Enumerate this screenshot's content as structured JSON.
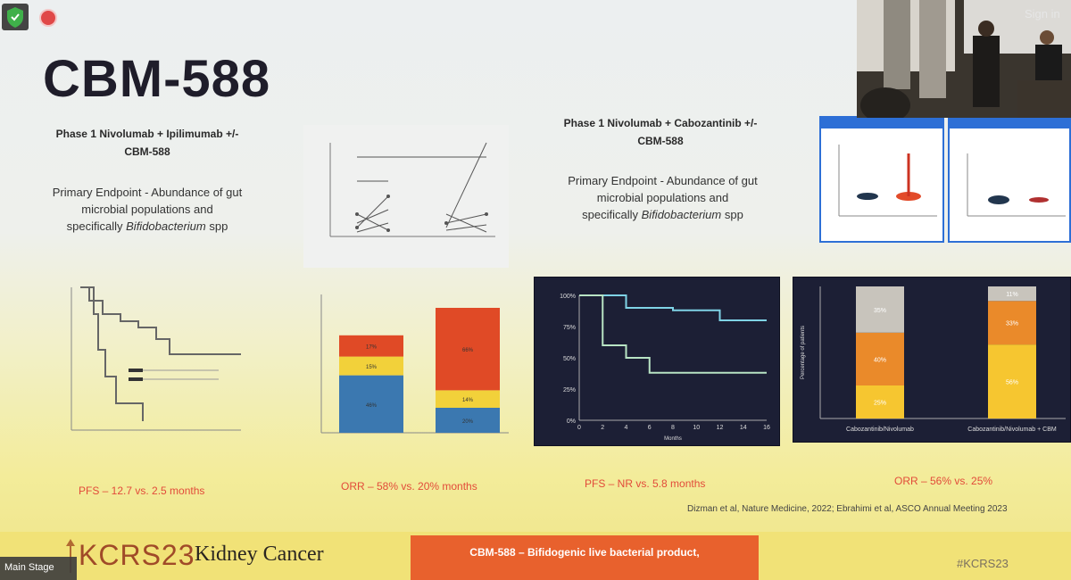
{
  "slide": {
    "title": "CBM-588",
    "left_header": [
      "Phase 1 Nivolumab + Ipilimumab +/-",
      "CBM-588"
    ],
    "left_sub": [
      "Primary Endpoint - Abundance of gut",
      "microbial populations and",
      "specifically ",
      "Bifidobacterium",
      " spp"
    ],
    "right_header": [
      "Phase 1 Nivolumab + Cabozantinib +/-",
      "CBM-588"
    ],
    "right_sub": [
      "Primary Endpoint - Abundance of gut",
      "microbial populations and",
      "specifically ",
      "Bifidobacterium",
      " spp"
    ],
    "captions": {
      "pfs_left": "PFS – 12.7 vs. 2.5 months",
      "orr_left": "ORR – 58% vs. 20% months",
      "pfs_right": "PFS – NR vs. 5.8 months",
      "orr_right": "ORR – 56% vs. 25%"
    },
    "credit": "Dizman et al, Nature Medicine, 2022; Ebrahimi et al, ASCO Annual Meeting 2023"
  },
  "banner": {
    "logo_text": "KCRS23",
    "name": "Kidney Cancer",
    "orange_text": "CBM-588 – Bifidogenic live bacterial product,",
    "hashtag": "#KCRS23"
  },
  "ui": {
    "main_stage_label": "Main Stage",
    "sign_in": "Sign in"
  },
  "colors": {
    "caption_red": "#e24b3a",
    "bar_red": "#e04a26",
    "bar_yellow": "#f2d13a",
    "bar_blue": "#3b78b0",
    "dark_bg": "#1c1f35",
    "km_cyan": "#7fd3e6",
    "km_green": "#b8e4c4",
    "bar_gray": "#c8c4bc",
    "bar_orange": "#ea8a2a",
    "bar_gold": "#f6c630"
  },
  "chart_data": [
    {
      "type": "bar",
      "label": "ORR stacked (Nivo/Ipi)",
      "categories": [
        "",
        ""
      ],
      "series": [
        {
          "values": [
            46,
            20
          ]
        },
        {
          "values": [
            15,
            14
          ]
        },
        {
          "values": [
            17,
            66
          ]
        }
      ],
      "data_labels": [
        "46%",
        "15%",
        "17%",
        "20%",
        "14%",
        "66%"
      ],
      "ylim": [
        0,
        100
      ]
    },
    {
      "type": "line",
      "label": "Kaplan-Meier PFS (Nivo/Cabo)",
      "x": [
        0,
        2,
        4,
        6,
        8,
        10,
        12,
        14,
        16
      ],
      "series": [
        {
          "values": [
            100,
            100,
            90,
            90,
            88,
            88,
            80,
            80,
            80
          ]
        },
        {
          "values": [
            100,
            60,
            50,
            38,
            38,
            38,
            38,
            38,
            38
          ]
        }
      ],
      "y_tick_labels": [
        "0%",
        "25%",
        "50%",
        "75%",
        "100%"
      ],
      "x_tick_labels": [
        "0",
        "2",
        "4",
        "6",
        "8",
        "10",
        "12",
        "14",
        "16"
      ],
      "xlabel": "Months"
    },
    {
      "type": "bar",
      "label": "ORR stacked (Nivo/Cabo)",
      "categories": [
        "Cabozantinib/Nivolumab",
        "Cabozantinib/Nivolumab + CBM"
      ],
      "series": [
        {
          "values": [
            25,
            56
          ]
        },
        {
          "values": [
            40,
            33
          ]
        },
        {
          "values": [
            35,
            11
          ]
        }
      ],
      "data_labels": [
        "25%",
        "40%",
        "35%",
        "56%",
        "33%",
        "11%"
      ],
      "ylabel": "Percentage of patients",
      "ylim": [
        0,
        100
      ]
    }
  ]
}
